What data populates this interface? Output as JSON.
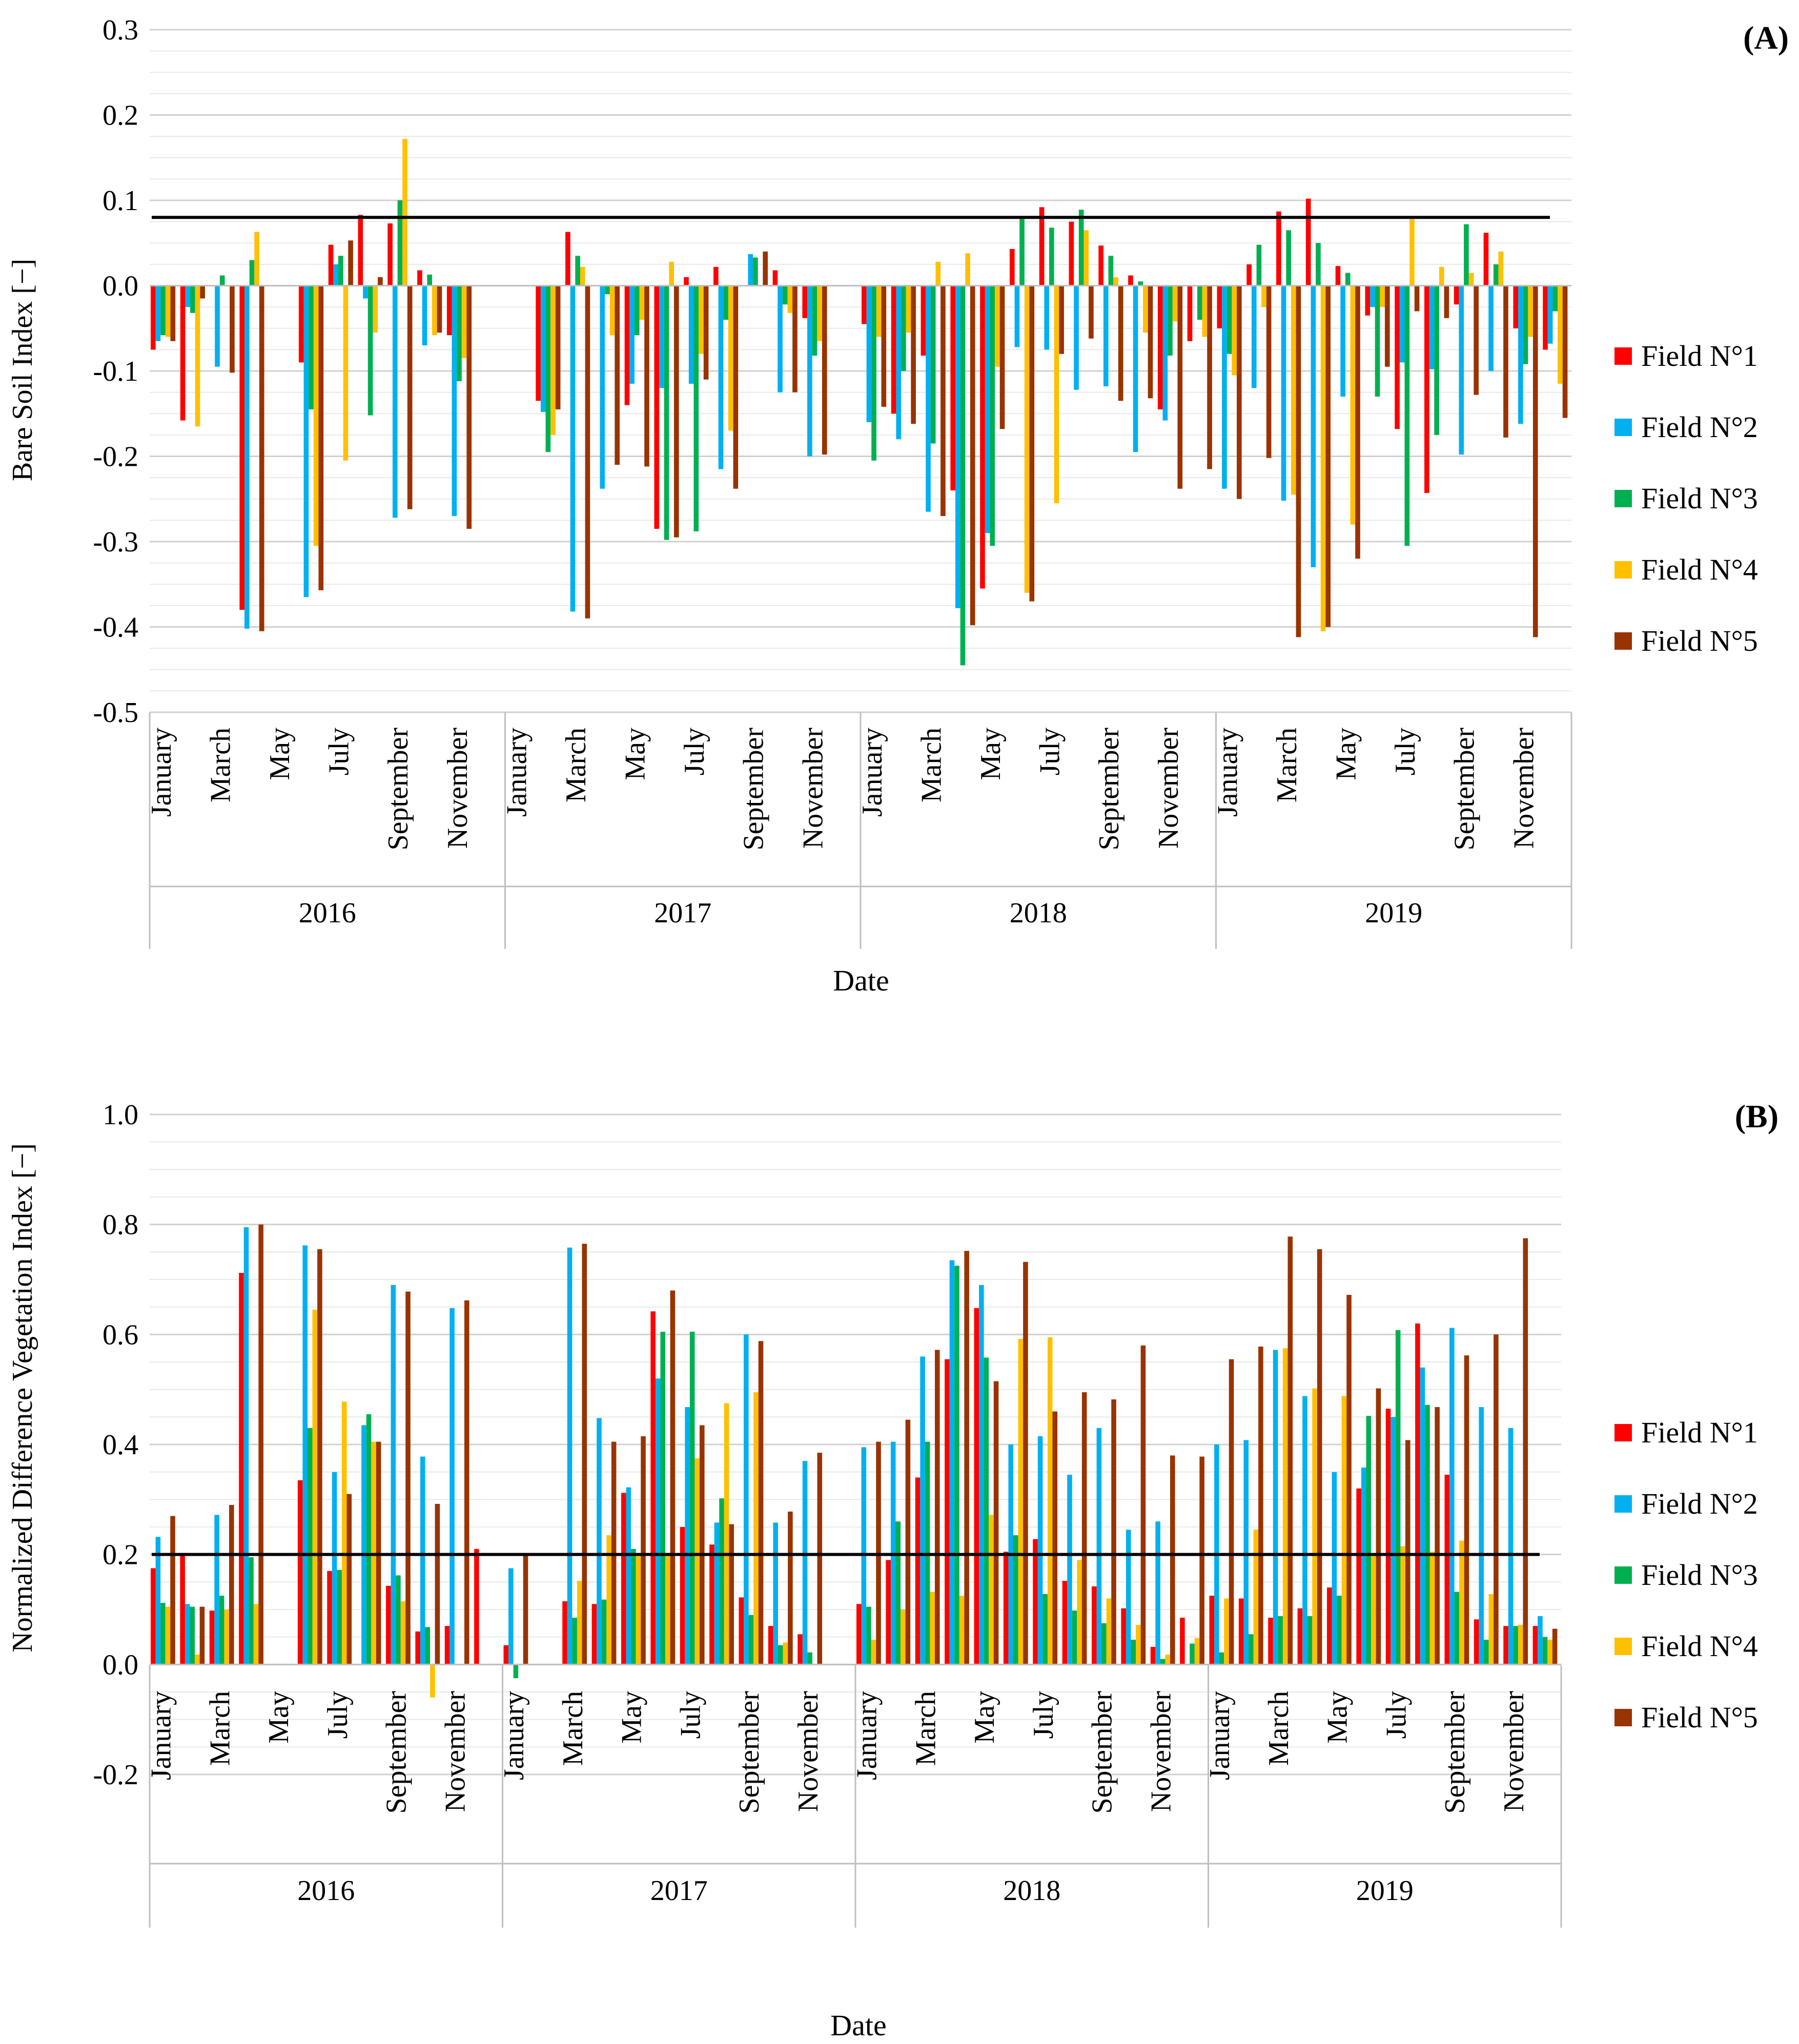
{
  "chart_data": [
    {
      "panel_label": "(A)",
      "type": "bar",
      "ylabel": "Bare Soil Index [−]",
      "xlabel": "Date",
      "ylim": [
        -0.5,
        0.3
      ],
      "y_ticks": [
        "0.3",
        "0.2",
        "0.1",
        "0.0",
        "-0.1",
        "-0.2",
        "-0.3",
        "-0.4",
        "-0.5"
      ],
      "threshold": 0.08,
      "month_labels": [
        "January",
        "March",
        "May",
        "July",
        "September",
        "November"
      ],
      "years": [
        "2016",
        "2017",
        "2018",
        "2019"
      ],
      "series": [
        {
          "name": "Field N°1",
          "color": "#FF0000",
          "values": [
            -0.075,
            -0.158,
            null,
            -0.38,
            null,
            -0.09,
            0.048,
            0.083,
            0.073,
            0.018,
            -0.058,
            null,
            null,
            -0.135,
            0.063,
            null,
            -0.14,
            -0.285,
            0.01,
            0.022,
            null,
            0.018,
            -0.038,
            null,
            -0.045,
            -0.15,
            -0.082,
            -0.24,
            -0.355,
            0.043,
            0.092,
            0.075,
            0.047,
            0.012,
            -0.145,
            -0.065,
            -0.05,
            0.025,
            0.087,
            0.102,
            0.023,
            -0.035,
            -0.168,
            -0.243,
            -0.022,
            0.062,
            -0.05,
            -0.075
          ]
        },
        {
          "name": "Field N°2",
          "color": "#00B0F0",
          "values": [
            -0.065,
            -0.025,
            -0.095,
            -0.402,
            null,
            -0.365,
            0.025,
            -0.015,
            -0.272,
            -0.07,
            -0.27,
            null,
            null,
            -0.148,
            -0.382,
            -0.238,
            -0.115,
            -0.12,
            -0.115,
            -0.215,
            0.037,
            -0.125,
            -0.2,
            null,
            -0.16,
            -0.18,
            -0.265,
            -0.378,
            -0.29,
            -0.072,
            -0.075,
            -0.122,
            -0.118,
            -0.195,
            -0.158,
            null,
            -0.238,
            -0.12,
            -0.252,
            -0.33,
            -0.13,
            -0.025,
            -0.09,
            -0.098,
            -0.198,
            -0.1,
            -0.162,
            -0.068
          ]
        },
        {
          "name": "Field N°3",
          "color": "#00B050",
          "values": [
            -0.058,
            -0.032,
            0.012,
            0.03,
            null,
            -0.145,
            0.035,
            -0.152,
            0.1,
            0.013,
            -0.112,
            null,
            null,
            -0.195,
            0.035,
            -0.01,
            -0.058,
            -0.298,
            -0.288,
            -0.04,
            0.033,
            -0.022,
            -0.082,
            null,
            -0.205,
            -0.1,
            -0.185,
            -0.445,
            -0.305,
            0.08,
            0.068,
            0.089,
            0.035,
            0.005,
            -0.082,
            -0.04,
            -0.08,
            0.048,
            0.065,
            0.05,
            0.015,
            -0.13,
            -0.305,
            -0.175,
            0.072,
            0.025,
            -0.092,
            -0.03
          ]
        },
        {
          "name": "Field N°4",
          "color": "#FFC000",
          "values": [
            -0.06,
            -0.165,
            null,
            0.063,
            null,
            -0.305,
            -0.205,
            -0.055,
            0.172,
            -0.058,
            -0.085,
            null,
            null,
            -0.175,
            0.022,
            -0.058,
            -0.04,
            0.028,
            -0.08,
            -0.17,
            null,
            -0.032,
            -0.065,
            null,
            -0.06,
            -0.055,
            0.028,
            0.038,
            -0.095,
            -0.36,
            -0.255,
            0.065,
            0.01,
            -0.055,
            -0.042,
            -0.06,
            -0.105,
            -0.025,
            -0.245,
            -0.405,
            -0.28,
            -0.025,
            0.078,
            0.022,
            0.015,
            0.04,
            -0.06,
            -0.115
          ]
        },
        {
          "name": "Field N°5",
          "color": "#993300",
          "values": [
            -0.065,
            -0.015,
            -0.102,
            -0.405,
            null,
            -0.357,
            0.053,
            0.01,
            -0.262,
            -0.055,
            -0.285,
            null,
            null,
            -0.145,
            -0.39,
            -0.21,
            -0.212,
            -0.295,
            -0.11,
            -0.238,
            0.04,
            -0.125,
            -0.198,
            null,
            -0.142,
            -0.162,
            -0.27,
            -0.398,
            -0.168,
            -0.37,
            -0.08,
            -0.062,
            -0.135,
            -0.132,
            -0.238,
            -0.215,
            -0.25,
            -0.202,
            -0.412,
            -0.4,
            -0.32,
            -0.095,
            -0.03,
            -0.038,
            -0.128,
            -0.178,
            -0.412,
            -0.155
          ]
        }
      ]
    },
    {
      "panel_label": "(B)",
      "type": "bar",
      "ylabel": "Normalized Difference Vegetation Index [−]",
      "xlabel": "Date",
      "ylim": [
        -0.2,
        1.0
      ],
      "y_ticks": [
        "1.0",
        "0.8",
        "0.6",
        "0.4",
        "0.2",
        "0.0",
        "-0.2"
      ],
      "threshold": 0.2,
      "month_labels": [
        "January",
        "March",
        "May",
        "July",
        "September",
        "November"
      ],
      "years": [
        "2016",
        "2017",
        "2018",
        "2019"
      ],
      "series": [
        {
          "name": "Field N°1",
          "color": "#FF0000",
          "values": [
            0.175,
            0.2,
            0.098,
            0.712,
            null,
            0.335,
            0.17,
            null,
            0.143,
            0.06,
            0.07,
            0.21,
            0.035,
            null,
            0.115,
            0.11,
            0.312,
            0.642,
            0.25,
            0.218,
            0.122,
            0.07,
            0.055,
            null,
            0.11,
            0.19,
            0.34,
            0.555,
            0.648,
            0.205,
            0.228,
            0.152,
            0.142,
            0.102,
            0.032,
            0.085,
            0.125,
            0.12,
            0.085,
            0.102,
            0.14,
            0.32,
            0.465,
            0.62,
            0.345,
            0.082,
            0.07,
            0.07
          ]
        },
        {
          "name": "Field N°2",
          "color": "#00B0F0",
          "values": [
            0.232,
            0.11,
            0.272,
            0.795,
            null,
            0.762,
            0.35,
            0.435,
            0.69,
            0.378,
            0.648,
            null,
            0.175,
            null,
            0.758,
            0.448,
            0.322,
            0.52,
            0.468,
            0.258,
            0.6,
            0.258,
            0.37,
            null,
            0.395,
            0.405,
            0.56,
            0.735,
            0.69,
            0.4,
            0.415,
            0.345,
            0.43,
            0.245,
            0.26,
            null,
            0.4,
            0.408,
            0.572,
            0.488,
            0.35,
            0.358,
            0.45,
            0.54,
            0.612,
            0.468,
            0.43,
            0.088
          ]
        },
        {
          "name": "Field N°3",
          "color": "#00B050",
          "values": [
            0.112,
            0.105,
            0.125,
            0.195,
            null,
            0.43,
            0.172,
            0.455,
            0.162,
            0.068,
            null,
            null,
            -0.025,
            null,
            0.085,
            0.118,
            0.21,
            0.605,
            0.605,
            0.302,
            0.09,
            0.035,
            0.022,
            null,
            0.105,
            0.26,
            0.405,
            0.725,
            0.558,
            0.235,
            0.128,
            0.098,
            0.075,
            0.045,
            0.01,
            0.038,
            0.022,
            0.055,
            0.088,
            0.088,
            0.125,
            0.452,
            0.608,
            0.472,
            0.132,
            0.045,
            0.07,
            0.05
          ]
        },
        {
          "name": "Field N°4",
          "color": "#FFC000",
          "values": [
            0.105,
            0.018,
            0.1,
            0.11,
            null,
            0.645,
            0.478,
            0.405,
            0.115,
            -0.06,
            null,
            null,
            null,
            null,
            0.152,
            0.235,
            0.2,
            0.2,
            0.375,
            0.475,
            0.495,
            0.04,
            null,
            null,
            0.045,
            0.1,
            0.132,
            0.125,
            0.272,
            0.592,
            0.595,
            0.19,
            0.12,
            0.072,
            0.018,
            0.048,
            0.12,
            0.245,
            0.575,
            0.502,
            0.488,
            0.2,
            0.215,
            0.205,
            0.225,
            0.128,
            0.072,
            0.045
          ]
        },
        {
          "name": "Field N°5",
          "color": "#993300",
          "values": [
            0.27,
            0.105,
            0.29,
            0.8,
            null,
            0.755,
            0.31,
            0.405,
            0.678,
            0.292,
            0.662,
            null,
            0.2,
            null,
            0.765,
            0.405,
            0.415,
            0.68,
            0.435,
            0.255,
            0.588,
            0.278,
            0.385,
            null,
            0.405,
            0.445,
            0.572,
            0.752,
            0.515,
            0.732,
            0.46,
            0.495,
            0.482,
            0.58,
            0.38,
            0.378,
            0.555,
            0.578,
            0.778,
            0.755,
            0.672,
            0.502,
            0.408,
            0.468,
            0.562,
            0.6,
            0.775,
            0.065
          ]
        }
      ]
    }
  ]
}
